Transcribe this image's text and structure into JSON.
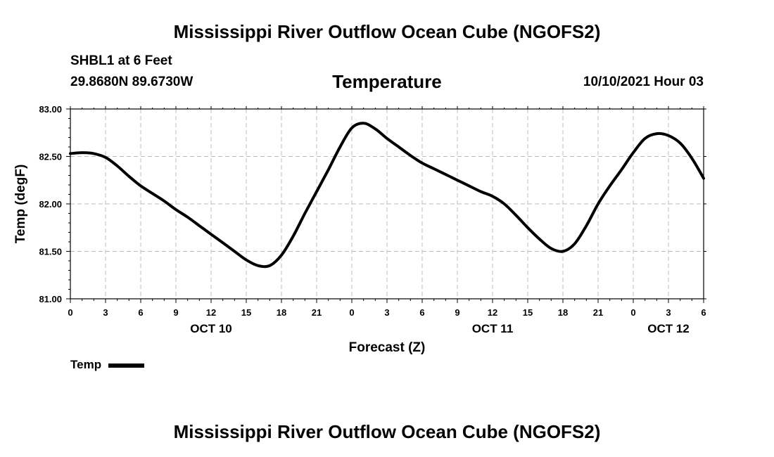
{
  "header": {
    "title": "Mississippi River Outflow Ocean Cube (NGOFS2)",
    "station": "SHBL1 at 6 Feet",
    "coords": "29.8680N  89.6730W",
    "variable": "Temperature",
    "datetime": "10/10/2021 Hour 03"
  },
  "footer": {
    "title": "Mississippi River Outflow Ocean Cube (NGOFS2)"
  },
  "legend": {
    "label": "Temp"
  },
  "colors": {
    "line": "#000000",
    "grid": "#bdbdbd"
  },
  "chart_data": {
    "type": "line",
    "title": "Temperature",
    "xlabel": "Forecast (Z)",
    "ylabel": "Temp (degF)",
    "xlim": [
      0,
      54
    ],
    "ylim": [
      81.0,
      83.0
    ],
    "grid": true,
    "x_ticks": [
      0,
      3,
      6,
      9,
      12,
      15,
      18,
      21,
      24,
      27,
      30,
      33,
      36,
      39,
      42,
      45,
      48,
      51,
      54
    ],
    "x_tick_labels": [
      "0",
      "3",
      "6",
      "9",
      "12",
      "15",
      "18",
      "21",
      "0",
      "3",
      "6",
      "9",
      "12",
      "15",
      "18",
      "21",
      "0",
      "3",
      "6"
    ],
    "date_labels": [
      {
        "x": 12,
        "label": "OCT 10"
      },
      {
        "x": 36,
        "label": "OCT 11"
      },
      {
        "x": 51,
        "label": "OCT 12"
      }
    ],
    "y_ticks": [
      81.0,
      81.5,
      82.0,
      82.5,
      83.0
    ],
    "y_tick_labels": [
      "81.00",
      "81.50",
      "82.00",
      "82.50",
      "83.00"
    ],
    "series": [
      {
        "name": "Temp",
        "x": [
          0,
          1,
          2,
          3,
          4,
          5,
          6,
          7,
          8,
          9,
          10,
          11,
          12,
          13,
          14,
          15,
          16,
          17,
          18,
          19,
          20,
          21,
          22,
          23,
          24,
          25,
          26,
          27,
          28,
          29,
          30,
          31,
          32,
          33,
          34,
          35,
          36,
          37,
          38,
          39,
          40,
          41,
          42,
          43,
          44,
          45,
          46,
          47,
          48,
          49,
          50,
          51,
          52,
          53,
          54
        ],
        "values": [
          82.53,
          82.54,
          82.53,
          82.49,
          82.4,
          82.29,
          82.19,
          82.11,
          82.03,
          81.94,
          81.86,
          81.77,
          81.68,
          81.59,
          81.5,
          81.41,
          81.35,
          81.35,
          81.46,
          81.66,
          81.9,
          82.13,
          82.36,
          82.6,
          82.8,
          82.85,
          82.79,
          82.69,
          82.6,
          82.51,
          82.43,
          82.37,
          82.31,
          82.25,
          82.19,
          82.13,
          82.08,
          82.0,
          81.88,
          81.75,
          81.63,
          81.53,
          81.5,
          81.58,
          81.77,
          82.0,
          82.19,
          82.36,
          82.54,
          82.69,
          82.74,
          82.72,
          82.64,
          82.48,
          82.27
        ]
      }
    ]
  }
}
